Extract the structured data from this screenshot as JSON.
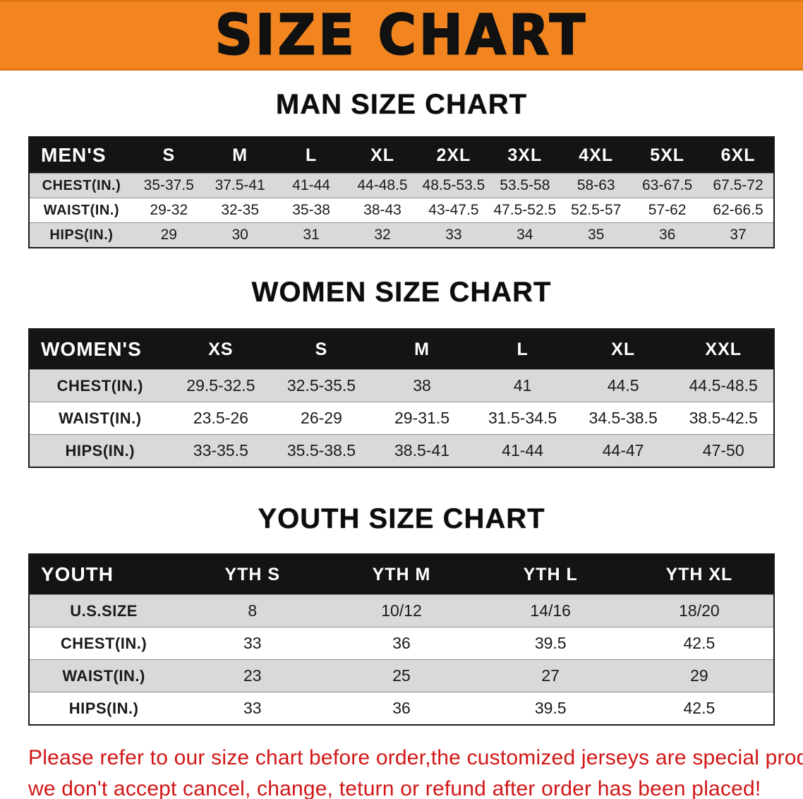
{
  "banner": {
    "title": "SIZE CHART"
  },
  "colors": {
    "banner_bg": "#f28520",
    "header_bg": "#141414",
    "stripe_gray": "#d9d9d9",
    "note_red": "#d21616"
  },
  "sections": {
    "men": {
      "heading": "MAN SIZE CHART",
      "table": {
        "header": [
          "MEN'S",
          "S",
          "M",
          "L",
          "XL",
          "2XL",
          "3XL",
          "4XL",
          "5XL",
          "6XL"
        ],
        "rows": [
          [
            "CHEST(IN.)",
            "35-37.5",
            "37.5-41",
            "41-44",
            "44-48.5",
            "48.5-53.5",
            "53.5-58",
            "58-63",
            "63-67.5",
            "67.5-72"
          ],
          [
            "WAIST(IN.)",
            "29-32",
            "32-35",
            "35-38",
            "38-43",
            "43-47.5",
            "47.5-52.5",
            "52.5-57",
            "57-62",
            "62-66.5"
          ],
          [
            "HIPS(IN.)",
            "29",
            "30",
            "31",
            "32",
            "33",
            "34",
            "35",
            "36",
            "37"
          ]
        ]
      }
    },
    "women": {
      "heading": "WOMEN SIZE CHART",
      "table": {
        "header": [
          "WOMEN'S",
          "XS",
          "S",
          "M",
          "L",
          "XL",
          "XXL"
        ],
        "rows": [
          [
            "CHEST(IN.)",
            "29.5-32.5",
            "32.5-35.5",
            "38",
            "41",
            "44.5",
            "44.5-48.5"
          ],
          [
            "WAIST(IN.)",
            "23.5-26",
            "26-29",
            "29-31.5",
            "31.5-34.5",
            "34.5-38.5",
            "38.5-42.5"
          ],
          [
            "HIPS(IN.)",
            "33-35.5",
            "35.5-38.5",
            "38.5-41",
            "41-44",
            "44-47",
            "47-50"
          ]
        ]
      }
    },
    "youth": {
      "heading": "YOUTH SIZE CHART",
      "table": {
        "header": [
          "YOUTH",
          "YTH S",
          "YTH M",
          "YTH L",
          "YTH XL"
        ],
        "rows": [
          [
            "U.S.SIZE",
            "8",
            "10/12",
            "14/16",
            "18/20"
          ],
          [
            "CHEST(IN.)",
            "33",
            "36",
            "39.5",
            "42.5"
          ],
          [
            "WAIST(IN.)",
            "23",
            "25",
            "27",
            "29"
          ],
          [
            "HIPS(IN.)",
            "33",
            "36",
            "39.5",
            "42.5"
          ]
        ]
      }
    }
  },
  "footer_note": {
    "line1": "Please refer to our size chart before order,the customized jerseys are special products,",
    "line2": "we don't accept cancel, change, teturn or refund after order has been placed!"
  }
}
